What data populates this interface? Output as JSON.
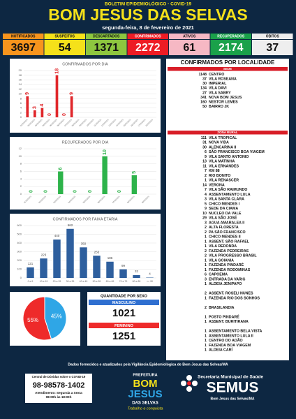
{
  "header": {
    "kicker": "BOLETIM EPIDEMIOLÓGICO - COVID-19",
    "title": "BOM JESUS DAS SELVAS",
    "date": "segunda-feira, 8 de fevereiro de 2021"
  },
  "stats": [
    {
      "label": "NOTIFICADOS",
      "value": 3697,
      "color": "#f7941d"
    },
    {
      "label": "SUSPEITOS",
      "value": 54,
      "color": "#f5e11a"
    },
    {
      "label": "DESCARTADOS",
      "value": 1371,
      "color": "#8dc63f"
    },
    {
      "label": "CONFIRMADOS",
      "value": 2272,
      "color": "#ed1c24"
    },
    {
      "label": "ATIVOS",
      "value": 61,
      "color": "#f6b8c4"
    },
    {
      "label": "RECUPERADOS",
      "value": 2174,
      "color": "#1aa14a"
    },
    {
      "label": "ÓBITOS",
      "value": 37,
      "color": "#eeeeee"
    }
  ],
  "chart_data": [
    {
      "type": "bar",
      "title": "CONFIRMADOS POR DIA",
      "color": "#e0262a",
      "grid": true,
      "categories": [
        "01/02/2021",
        "02/02/2021",
        "03/02/2021",
        "04/02/2021",
        "05/02/2021",
        "06/02/2021",
        "07/02/2021",
        "08/02/2021",
        "09/02/2021",
        "10/02/2021",
        "11/02/2021",
        "12/02/2021",
        "13/02/2021",
        "14/02/2021",
        "15/02/2021",
        "16/02/2021",
        "17/02/2021",
        "18/02/2021"
      ],
      "values": [
        9,
        3,
        4,
        0,
        18,
        0,
        9,
        null,
        null,
        null,
        null,
        null,
        null,
        null,
        null,
        null,
        null,
        null
      ],
      "ylim": [
        0,
        20
      ],
      "yticks": [
        0,
        2,
        4,
        6,
        8,
        10,
        12,
        14,
        16,
        18,
        20
      ]
    },
    {
      "type": "bar",
      "title": "RECUPERADOS POR DIA",
      "color": "#2db34a",
      "grid": true,
      "categories": [
        "01/02/2021",
        "02/02/2021",
        "03/02/2021",
        "04/02/2021",
        "05/02/2021",
        "06/02/2021",
        "07/02/2021",
        "08/02/2021",
        "09/02/2021"
      ],
      "values": [
        0,
        0,
        6,
        0,
        0,
        10,
        0,
        5,
        null
      ],
      "ylim": [
        0,
        12
      ],
      "yticks": [
        0,
        2,
        4,
        6,
        8,
        10,
        12
      ]
    },
    {
      "type": "bar",
      "title": "CONFIRMADOS POR FAIXA ETÁRIA",
      "color": "#2e5f9e",
      "grid": true,
      "categories": [
        "0 a 9",
        "10 a 19",
        "20 a 29",
        "30 a 39",
        "40 a 49",
        "50 a 59",
        "60 a 69",
        "70 a 79",
        "80 a 89",
        ">= 90"
      ],
      "values": [
        121,
        223,
        440,
        562,
        350,
        255,
        186,
        99,
        32,
        4
      ],
      "ylim": [
        0,
        600
      ],
      "yticks": [
        0,
        100,
        200,
        300,
        400,
        500,
        600
      ]
    },
    {
      "type": "pie",
      "values": [
        55,
        45
      ],
      "value_labels": [
        "55%",
        "45%"
      ],
      "colors": [
        "#ee2a2a",
        "#2fa6e6"
      ]
    }
  ],
  "sex": {
    "title": "QUANTIDADE POR SEXO",
    "groups": [
      {
        "label": "MASCULINO",
        "value": 1021,
        "color": "#2f6fd0"
      },
      {
        "label": "FEMININO",
        "value": 1251,
        "color": "#ee2a2a"
      }
    ]
  },
  "localidade": {
    "title": "CONFIRMADOS POR LOCALIDADE",
    "sections": [
      {
        "name": "SEDE",
        "groups": [
          [
            [
              1148,
              "CENTRO"
            ],
            [
              37,
              "VILA ROSEANA"
            ],
            [
              30,
              "IMPERIAL"
            ],
            [
              134,
              "VILA DAVI"
            ],
            [
              27,
              "VILA SABRY"
            ],
            [
              341,
              "NOVA BOM JESUS"
            ],
            [
              160,
              "NESTOR LEMES"
            ],
            [
              50,
              "BAIRRO JK"
            ]
          ]
        ]
      },
      {
        "name": "ZONA RURAL",
        "groups": [
          [
            [
              111,
              "VILA TROPICAL"
            ],
            [
              31,
              "NOVA VIDA"
            ],
            [
              30,
              "ALENCARINA II"
            ],
            [
              6,
              "SÃO FRANCISCO BOA VIAGEM"
            ],
            [
              9,
              "VILA SANTO ANTONIO"
            ],
            [
              13,
              "VILA MATINHA"
            ],
            [
              11,
              "VILA ERNANDES"
            ],
            [
              7,
              "KM 88"
            ],
            [
              2,
              "RIO BONITO"
            ],
            [
              1,
              "VILA RENASCER"
            ],
            [
              14,
              "VERONA"
            ],
            [
              7,
              "VILA SÃO RAIMUNDO"
            ],
            [
              4,
              "ASSENTAMENTO LULA"
            ],
            [
              3,
              "VILA SANTA CLARA"
            ],
            [
              5,
              "CHICO MENDES I"
            ],
            [
              9,
              "SEDE DA CIAMA"
            ],
            [
              10,
              "NUCLEO DA VALE"
            ],
            [
              29,
              "VILA SÃO JOSÉ"
            ],
            [
              3,
              "AGUA AMARALEA II"
            ],
            [
              2,
              "ALTA FLORESTA"
            ],
            [
              2,
              "PA SÃO FRANCISCO"
            ],
            [
              1,
              "CHICO MENDES II"
            ],
            [
              1,
              "ASSENT. SÃO RAFAEL"
            ],
            [
              1,
              "VILA REDONDA"
            ],
            [
              2,
              "FAZENDA PEDREIRAS"
            ],
            [
              2,
              "VILA PROGRESSO BRASIL"
            ],
            [
              1,
              "VILA GOIANIA"
            ],
            [
              1,
              "FAZENDA PINDARÉ"
            ],
            [
              1,
              "FAZENDA RODOMINAS"
            ],
            [
              6,
              "CAPOEMA"
            ],
            [
              3,
              "ENTRADA DA VARIG"
            ],
            [
              1,
              "ALDEIA JENIPAPO"
            ]
          ],
          [
            [
              2,
              "ASSENT. ROSELI NUNES"
            ],
            [
              1,
              "FAZENDA RIO DOS SONHOS"
            ]
          ],
          [
            [
              2,
              "BRASILANDIA"
            ]
          ],
          [
            [
              1,
              "POSTO PINDARÉ"
            ],
            [
              1,
              "ASSENT. BURITIRANA"
            ]
          ],
          [
            [
              1,
              "ASSENTAMENTO BELA VISTA"
            ],
            [
              1,
              "ASSENTAMENTO LULA II"
            ],
            [
              1,
              "CENTRO DO ADÃO"
            ],
            [
              1,
              "FAZENDA BOA VIAGEM"
            ],
            [
              1,
              "ALDEIA CARÍ"
            ]
          ]
        ]
      }
    ]
  },
  "footer": {
    "note": "Dados fornecidos e atualizados pela Vigilância Epidemiológica de Bom Jesus das Selvas/MA",
    "contact": {
      "title": "Central de Dúvidas sobre o COVID-19",
      "phone": "98-98578-1402",
      "hours": [
        "Atendimento: Segunda a Sexta",
        "08:00h às 18:00h"
      ]
    },
    "logo": {
      "top": "PREFEITURA",
      "name": [
        "BOM",
        "JESUS",
        "DAS SELVAS"
      ],
      "slogan": "Trabalho e conquista"
    },
    "semus": {
      "line1": "Secretaria Municipal de Saúde",
      "name": "SEMUS",
      "place": "Bom Jesus das Selvas/MA"
    }
  }
}
